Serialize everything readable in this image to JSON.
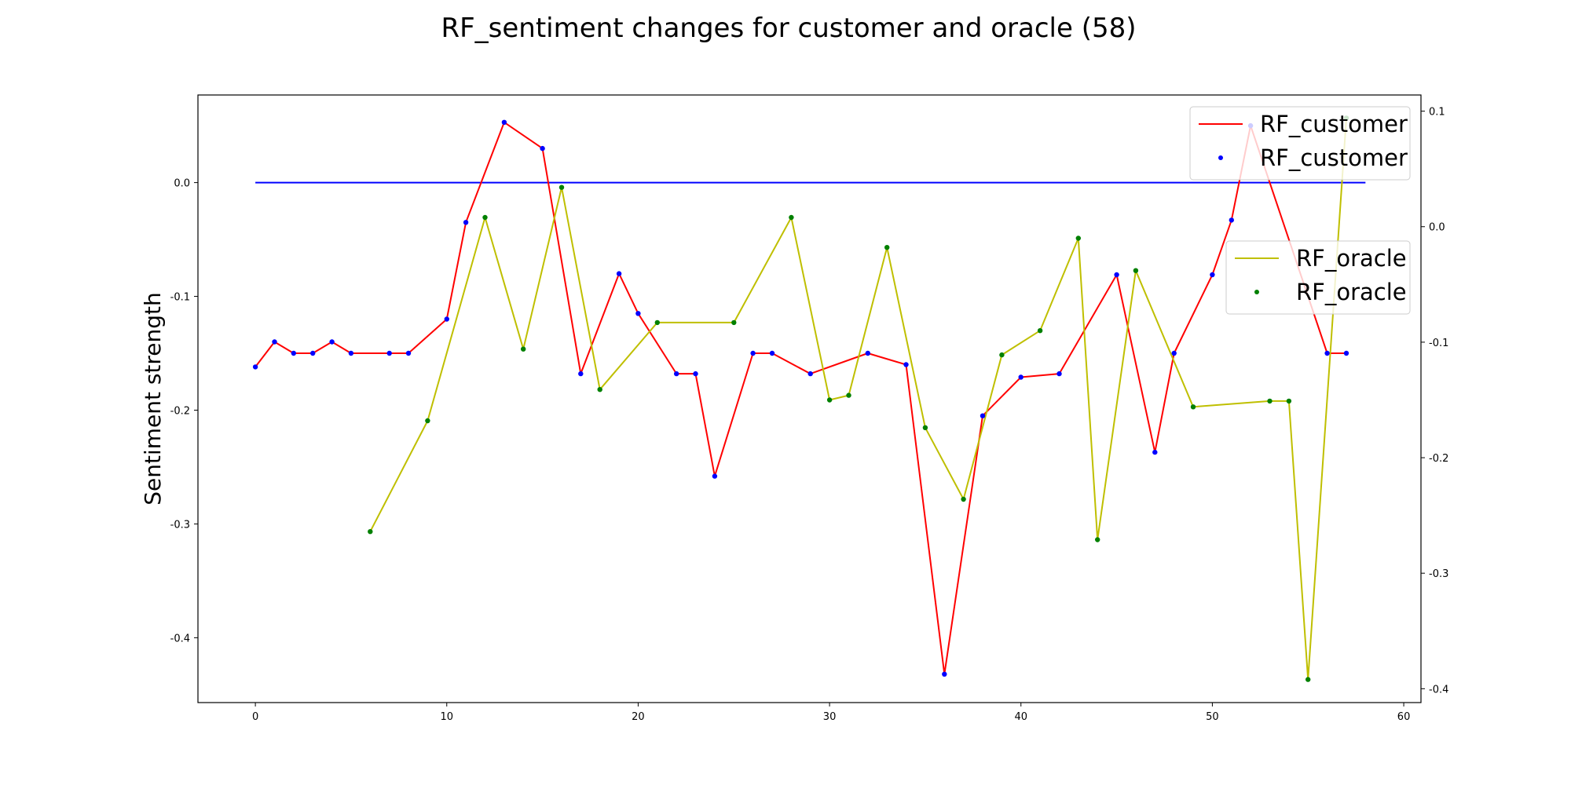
{
  "chart_data": {
    "type": "line",
    "title": "RF_sentiment changes for customer and oracle (58)",
    "xlabel": "",
    "ylabel": "Sentiment strength",
    "xlim": [
      -3,
      60.9
    ],
    "ylim": [
      -0.457,
      0.077
    ],
    "y2lim": [
      -0.412,
      0.114
    ],
    "x_ticks": [
      0,
      10,
      20,
      30,
      40,
      50,
      60
    ],
    "y_ticks": [
      0.0,
      -0.1,
      -0.2,
      -0.3,
      -0.4
    ],
    "y_tick_labels": [
      "0.0",
      "-0.1",
      "-0.2",
      "-0.3",
      "-0.4"
    ],
    "y2_ticks": [
      0.1,
      0.0,
      -0.1,
      -0.2,
      -0.3,
      -0.4
    ],
    "y2_tick_labels": [
      "0.1",
      "0.0",
      "-0.1",
      "-0.2",
      "-0.3",
      "-0.4"
    ],
    "legend_placement": "top-right",
    "colors": {
      "customer_line": "#ff0000",
      "customer_points": "#0000ff",
      "oracle_line": "#bfbf00",
      "oracle_points": "#008000",
      "zero_line": "#0000ff"
    },
    "zero_line": {
      "x": [
        0,
        58
      ],
      "y": 0.0,
      "axis": "left"
    },
    "series": [
      {
        "name": "RF_customer",
        "axis": "left",
        "style": "line+points",
        "x": [
          0,
          1,
          2,
          3,
          4,
          5,
          7,
          8,
          10,
          11,
          13,
          15,
          17,
          19,
          20,
          22,
          23,
          24,
          26,
          27,
          29,
          32,
          34,
          36,
          38,
          40,
          42,
          45,
          47,
          48,
          50,
          51,
          52,
          56,
          57
        ],
        "y": [
          -0.162,
          -0.14,
          -0.15,
          -0.15,
          -0.14,
          -0.15,
          -0.15,
          -0.15,
          -0.12,
          -0.035,
          0.053,
          0.03,
          -0.168,
          -0.08,
          -0.115,
          -0.168,
          -0.168,
          -0.258,
          -0.15,
          -0.15,
          -0.168,
          -0.15,
          -0.16,
          -0.432,
          -0.205,
          -0.171,
          -0.168,
          -0.081,
          -0.237,
          -0.15,
          -0.081,
          -0.033,
          0.05,
          -0.15,
          -0.15
        ]
      },
      {
        "name": "RF_oracle",
        "axis": "right",
        "style": "line+points",
        "x": [
          6,
          9,
          12,
          14,
          16,
          18,
          21,
          25,
          28,
          30,
          31,
          33,
          35,
          37,
          39,
          41,
          43,
          44,
          46,
          49,
          53,
          54,
          55,
          57
        ],
        "y": [
          -0.264,
          -0.168,
          0.008,
          -0.106,
          0.034,
          -0.141,
          -0.083,
          -0.083,
          0.008,
          -0.15,
          -0.146,
          -0.018,
          -0.174,
          -0.236,
          -0.111,
          -0.09,
          -0.01,
          -0.271,
          -0.038,
          -0.156,
          -0.151,
          -0.151,
          -0.392,
          0.094
        ]
      }
    ]
  },
  "legend_customer": {
    "line_label": "RF_customer",
    "points_label": "RF_customer"
  },
  "legend_oracle": {
    "line_label": "RF_oracle",
    "points_label": "RF_oracle"
  }
}
